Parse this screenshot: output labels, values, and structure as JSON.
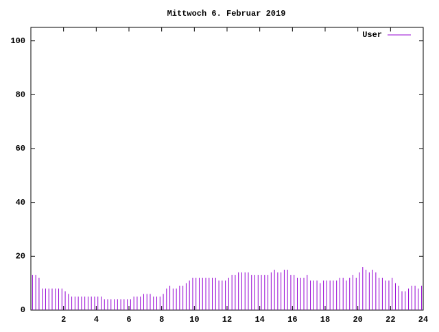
{
  "chart_data": {
    "type": "impulses",
    "title": "Mittwoch 6. Februar 2019",
    "xlim": [
      0,
      24
    ],
    "xticks": [
      2,
      4,
      6,
      8,
      10,
      12,
      14,
      16,
      18,
      20,
      22,
      24
    ],
    "ylim": [
      0,
      105
    ],
    "yticks": [
      0,
      20,
      40,
      60,
      80,
      100
    ],
    "legend": "top-right",
    "series": [
      {
        "name": "User",
        "color": "#9400d3",
        "x": [
          0.1,
          0.3,
          0.5,
          0.7,
          0.9,
          1.1,
          1.3,
          1.5,
          1.7,
          1.9,
          2.1,
          2.3,
          2.5,
          2.7,
          2.9,
          3.1,
          3.3,
          3.5,
          3.7,
          3.9,
          4.1,
          4.3,
          4.5,
          4.7,
          4.9,
          5.1,
          5.3,
          5.5,
          5.7,
          5.9,
          6.1,
          6.3,
          6.5,
          6.7,
          6.9,
          7.1,
          7.3,
          7.5,
          7.7,
          7.9,
          8.1,
          8.3,
          8.5,
          8.7,
          8.9,
          9.1,
          9.3,
          9.5,
          9.7,
          9.9,
          10.1,
          10.3,
          10.5,
          10.7,
          10.9,
          11.1,
          11.3,
          11.5,
          11.7,
          11.9,
          12.1,
          12.3,
          12.5,
          12.7,
          12.9,
          13.1,
          13.3,
          13.5,
          13.7,
          13.9,
          14.1,
          14.3,
          14.5,
          14.7,
          14.9,
          15.1,
          15.3,
          15.5,
          15.7,
          15.9,
          16.1,
          16.3,
          16.5,
          16.7,
          16.9,
          17.1,
          17.3,
          17.5,
          17.7,
          17.9,
          18.1,
          18.3,
          18.5,
          18.7,
          18.9,
          19.1,
          19.3,
          19.5,
          19.7,
          19.9,
          20.1,
          20.3,
          20.5,
          20.7,
          20.9,
          21.1,
          21.3,
          21.5,
          21.7,
          21.9,
          22.1,
          22.3,
          22.5,
          22.7,
          22.9,
          23.1,
          23.3,
          23.5,
          23.7,
          23.9
        ],
        "values": [
          13,
          13,
          12,
          8,
          8,
          8,
          8,
          8,
          8,
          8,
          7,
          6,
          5,
          5,
          5,
          5,
          5,
          5,
          5,
          5,
          5,
          5,
          4,
          4,
          4,
          4,
          4,
          4,
          4,
          4,
          4,
          5,
          5,
          5,
          6,
          6,
          6,
          5,
          5,
          5,
          6,
          8,
          9,
          8,
          8,
          9,
          9,
          10,
          11,
          12,
          12,
          12,
          12,
          12,
          12,
          12,
          12,
          11,
          11,
          11,
          12,
          13,
          13,
          14,
          14,
          14,
          14,
          13,
          13,
          13,
          13,
          13,
          13,
          14,
          15,
          14,
          14,
          15,
          15,
          13,
          13,
          12,
          12,
          12,
          13,
          11,
          11,
          11,
          10,
          11,
          11,
          11,
          11,
          11,
          12,
          12,
          11,
          12,
          13,
          12,
          14,
          16,
          15,
          14,
          15,
          14,
          12,
          12,
          11,
          11,
          12,
          10,
          9,
          7,
          7,
          8,
          9,
          9,
          8,
          9
        ]
      }
    ]
  }
}
